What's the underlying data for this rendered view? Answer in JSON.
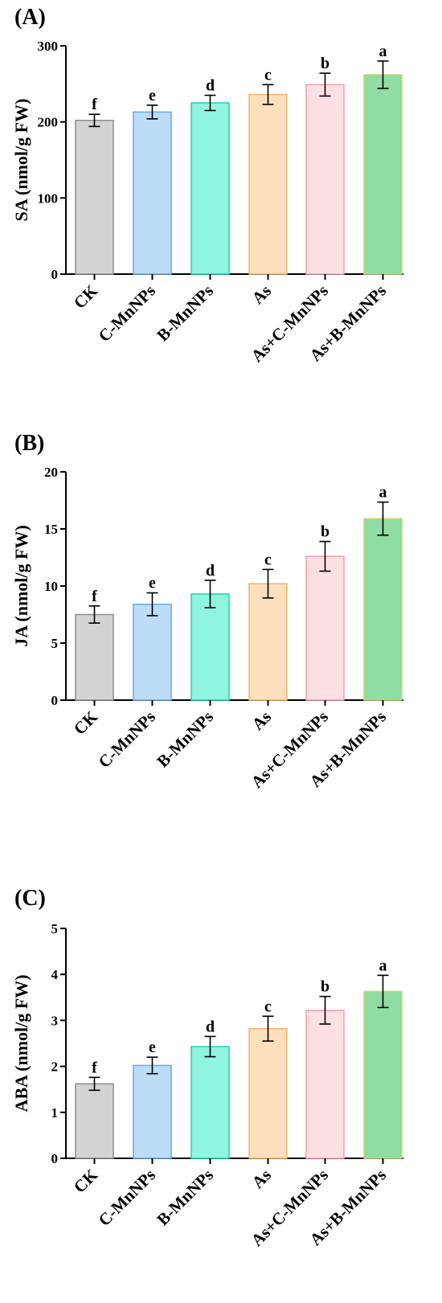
{
  "colors": {
    "CK": {
      "fill": "#d3d3d3",
      "stroke": "#8e8e8e"
    },
    "C-MnNPs": {
      "fill": "#bcdcf7",
      "stroke": "#6aa9e3"
    },
    "B-MnNPs": {
      "fill": "#8ff5df",
      "stroke": "#21d3ac"
    },
    "As": {
      "fill": "#fce0bd",
      "stroke": "#f3b36b"
    },
    "As+C-MnNPs": {
      "fill": "#fde0e3",
      "stroke": "#f2a1a8"
    },
    "As+B-MnNPs": {
      "fill": "#8fdca4",
      "stroke": "#c7d67a"
    }
  },
  "chart_data": [
    {
      "type": "bar",
      "panel_label": "(A)",
      "ylabel": "SA (nmol/g FW)",
      "ylim": [
        0,
        300
      ],
      "yticks": [
        0,
        100,
        200,
        300
      ],
      "categories": [
        "CK",
        "C-MnNPs",
        "B-MnNPs",
        "As",
        "As+C-MnNPs",
        "As+B-MnNPs"
      ],
      "values": [
        202,
        213,
        225,
        236,
        249,
        262
      ],
      "errors": [
        8,
        9,
        10,
        13,
        15,
        18
      ],
      "significance": [
        "f",
        "e",
        "d",
        "c",
        "b",
        "a"
      ]
    },
    {
      "type": "bar",
      "panel_label": "(B)",
      "ylabel": "JA (nmol/g FW)",
      "ylim": [
        0,
        20
      ],
      "yticks": [
        0,
        5,
        10,
        15,
        20
      ],
      "categories": [
        "CK",
        "C-MnNPs",
        "B-MnNPs",
        "As",
        "As+C-MnNPs",
        "As+B-MnNPs"
      ],
      "values": [
        7.5,
        8.4,
        9.3,
        10.2,
        12.6,
        15.9
      ],
      "errors": [
        0.75,
        1.0,
        1.2,
        1.25,
        1.3,
        1.45
      ],
      "significance": [
        "f",
        "e",
        "d",
        "c",
        "b",
        "a"
      ]
    },
    {
      "type": "bar",
      "panel_label": "(C)",
      "ylabel": "ABA (nmol/g FW)",
      "ylim": [
        0,
        5
      ],
      "yticks": [
        0,
        1,
        2,
        3,
        4,
        5
      ],
      "categories": [
        "CK",
        "C-MnNPs",
        "B-MnNPs",
        "As",
        "As+C-MnNPs",
        "As+B-MnNPs"
      ],
      "values": [
        1.62,
        2.02,
        2.43,
        2.82,
        3.22,
        3.63
      ],
      "errors": [
        0.14,
        0.18,
        0.22,
        0.27,
        0.3,
        0.35
      ],
      "significance": [
        "f",
        "e",
        "d",
        "c",
        "b",
        "a"
      ]
    }
  ]
}
